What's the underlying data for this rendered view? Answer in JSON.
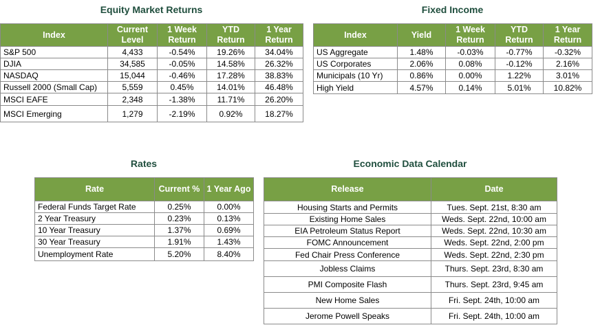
{
  "equity": {
    "title": "Equity Market Returns",
    "headers": [
      "Index",
      "Current Level",
      "1 Week Return",
      "YTD Return",
      "1 Year Return"
    ],
    "rows": [
      [
        "S&P 500",
        "4,433",
        "-0.54%",
        "19.26%",
        "34.04%"
      ],
      [
        "DJIA",
        "34,585",
        "-0.05%",
        "14.58%",
        "26.32%"
      ],
      [
        "NASDAQ",
        "15,044",
        "-0.46%",
        "17.28%",
        "38.83%"
      ],
      [
        "Russell 2000 (Small Cap)",
        "5,559",
        "0.45%",
        "14.01%",
        "46.48%"
      ],
      [
        "MSCI EAFE",
        "2,348",
        "-1.38%",
        "11.71%",
        "26.20%"
      ],
      [
        "MSCI Emerging",
        "1,279",
        "-2.19%",
        "0.92%",
        "18.27%"
      ]
    ]
  },
  "fixed_income": {
    "title": "Fixed Income",
    "headers": [
      "Index",
      "Yield",
      "1 Week Return",
      "YTD Return",
      "1 Year Return"
    ],
    "rows": [
      [
        "US Aggregate",
        "1.48%",
        "-0.03%",
        "-0.77%",
        "-0.32%"
      ],
      [
        "US Corporates",
        "2.06%",
        "0.08%",
        "-0.12%",
        "2.16%"
      ],
      [
        "Municipals (10 Yr)",
        "0.86%",
        "0.00%",
        "1.22%",
        "3.01%"
      ],
      [
        "High Yield",
        "4.57%",
        "0.14%",
        "5.01%",
        "10.82%"
      ]
    ]
  },
  "rates": {
    "title": "Rates",
    "headers": [
      "Rate",
      "Current %",
      "1 Year Ago"
    ],
    "rows": [
      [
        "Federal Funds Target Rate",
        "0.25%",
        "0.00%"
      ],
      [
        "2 Year Treasury",
        "0.23%",
        "0.13%"
      ],
      [
        "10 Year Treasury",
        "1.37%",
        "0.69%"
      ],
      [
        "30 Year Treasury",
        "1.91%",
        "1.43%"
      ],
      [
        "Unemployment Rate",
        "5.20%",
        "8.40%"
      ]
    ]
  },
  "calendar": {
    "title": "Economic Data Calendar",
    "headers": [
      "Release",
      "Date"
    ],
    "rows": [
      [
        "Housing Starts and Permits",
        "Tues. Sept. 21st, 8:30 am"
      ],
      [
        "Existing Home Sales",
        "Weds. Sept. 22nd, 10:00 am"
      ],
      [
        "EIA Petroleum Status Report",
        "Weds. Sept. 22nd, 10:30 am"
      ],
      [
        "FOMC Announcement",
        "Weds. Sept. 22nd, 2:00 pm"
      ],
      [
        "Fed Chair Press Conference",
        "Weds. Sept. 22nd, 2:30 pm"
      ],
      [
        "Jobless Claims",
        "Thurs. Sept. 23rd, 8:30 am"
      ],
      [
        "PMI Composite Flash",
        "Thurs. Sept. 23rd, 9:45 am"
      ],
      [
        "New Home Sales",
        "Fri. Sept. 24th, 10:00 am"
      ],
      [
        "Jerome Powell Speaks",
        "Fri. Sept. 24th, 10:00 am"
      ]
    ]
  }
}
